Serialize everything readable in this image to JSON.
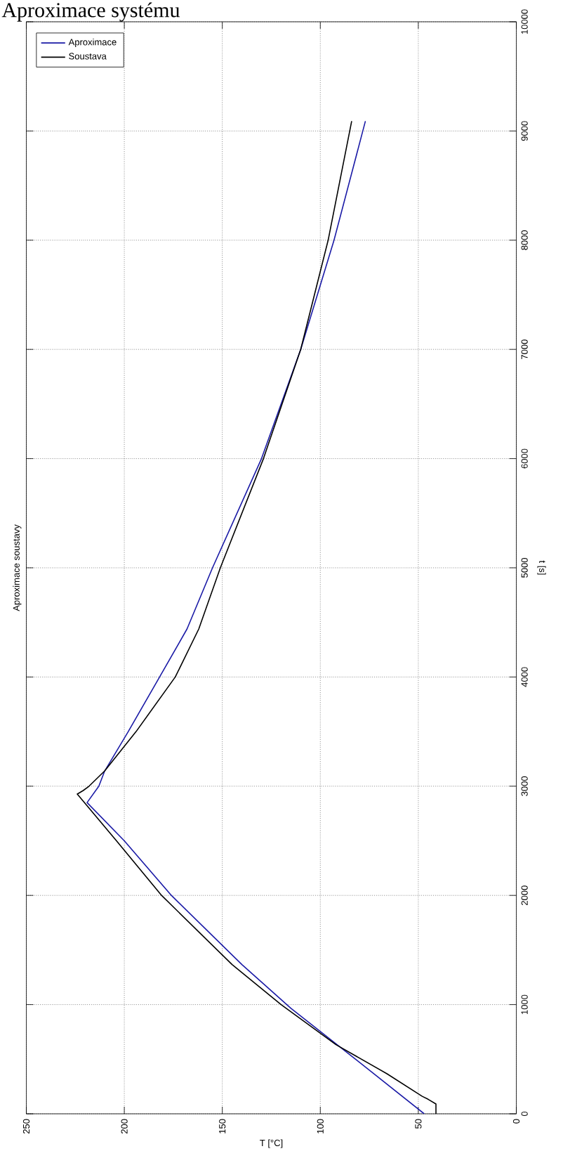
{
  "chart_data": {
    "type": "line",
    "title": "Aproximace soustavy",
    "xlabel": "T [°C]",
    "ylabel": "t [s]",
    "annotations": [
      "Aproximace systému"
    ],
    "xlim": [
      250,
      0
    ],
    "ylim": [
      0,
      10000
    ],
    "xticks": [
      0,
      50,
      100,
      150,
      200,
      250
    ],
    "yticks": [
      0,
      1000,
      2000,
      3000,
      4000,
      5000,
      6000,
      7000,
      8000,
      9000,
      10000
    ],
    "grid": true,
    "legend": "top left",
    "line_style": "solid",
    "series": [
      {
        "name": "Aproximace",
        "color": "#1a1aa6",
        "x": [
          47,
          82,
          115,
          140,
          176,
          200,
          219,
          213,
          210,
          198,
          182,
          168,
          155,
          130,
          110,
          93,
          77
        ],
        "values": [
          0,
          500,
          966,
          1367,
          2000,
          2500,
          2850,
          3000,
          3140,
          3500,
          4000,
          4440,
          5000,
          6000,
          7000,
          8000,
          9090
        ]
      },
      {
        "name": "Soustava",
        "color": "#000000",
        "x": [
          41,
          41,
          45,
          48,
          66,
          92,
          120,
          145,
          181,
          204,
          224,
          221,
          218,
          210,
          194,
          174,
          162,
          151,
          129,
          110,
          96,
          84
        ],
        "values": [
          0,
          90,
          133,
          160,
          367,
          633,
          1000,
          1367,
          2000,
          2500,
          2928,
          2960,
          3000,
          3140,
          3500,
          4000,
          4440,
          5000,
          6000,
          7000,
          8000,
          9090
        ]
      }
    ]
  }
}
